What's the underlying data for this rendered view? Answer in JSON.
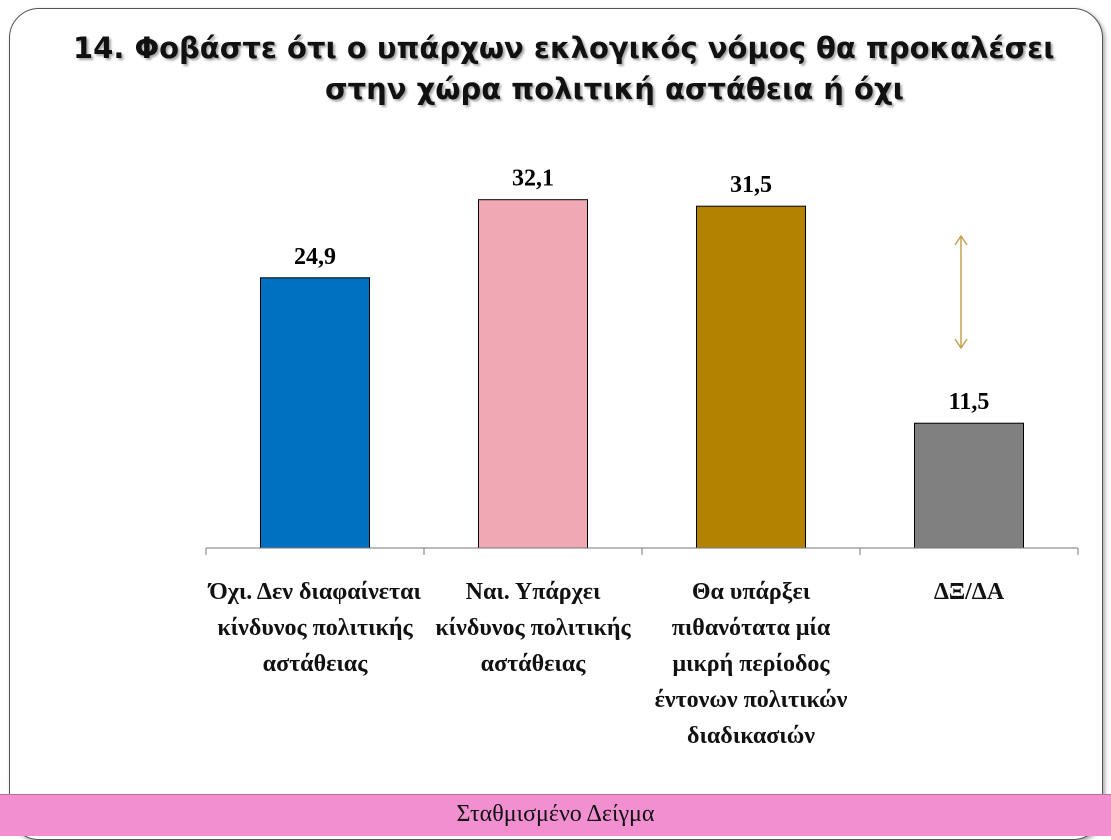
{
  "title": {
    "line1": "14. Φοβάστε ότι ο υπάρχων εκλογικός νόμος θα προκαλέσει",
    "line2": "στην χώρα πολιτική αστάθεια ή όχι"
  },
  "footer": {
    "text": "Σταθμισμένο Δείγμα"
  },
  "chart_data": {
    "type": "bar",
    "categories": [
      "Όχι. Δεν διαφαίνεται κίνδυνος πολιτικής αστάθειας",
      "Ναι. Υπάρχει κίνδυνος πολιτικής αστάθειας",
      "Θα υπάρξει πιθανότατα μία μικρή περίοδος έντονων πολιτικών διαδικασιών",
      "ΔΞ/ΔΑ"
    ],
    "values": [
      24.9,
      32.1,
      31.5,
      11.5
    ],
    "value_labels": [
      "24,9",
      "32,1",
      "31,5",
      "11,5"
    ],
    "colors": [
      "#0070c0",
      "#f0a8b4",
      "#b38300",
      "#808080"
    ],
    "ylim": [
      0,
      35
    ],
    "grid": false,
    "legend": "none",
    "annotation": "double-headed arrow above ΔΞ/ΔΑ bar",
    "annotation_color": "#c8a050"
  }
}
